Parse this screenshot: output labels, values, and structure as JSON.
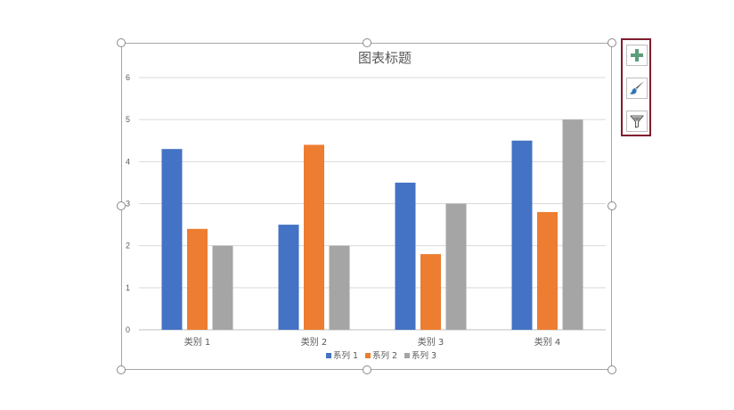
{
  "chart_data": {
    "type": "bar",
    "title": "图表标题",
    "categories": [
      "类别 1",
      "类别 2",
      "类别 3",
      "类别 4"
    ],
    "series": [
      {
        "name": "系列 1",
        "values": [
          4.3,
          2.5,
          3.5,
          4.5
        ],
        "color": "#4472c4"
      },
      {
        "name": "系列 2",
        "values": [
          2.4,
          4.4,
          1.8,
          2.8
        ],
        "color": "#ed7d31"
      },
      {
        "name": "系列 3",
        "values": [
          2,
          2,
          3,
          5
        ],
        "color": "#a5a5a5"
      }
    ],
    "ylim": [
      0,
      6
    ],
    "yticks": [
      "0",
      "1",
      "2",
      "3",
      "4",
      "5",
      "6"
    ],
    "grid": true,
    "legend": "bottom"
  },
  "side_buttons": {
    "add": "plus-icon",
    "style": "brush-icon",
    "filter": "funnel-icon"
  }
}
